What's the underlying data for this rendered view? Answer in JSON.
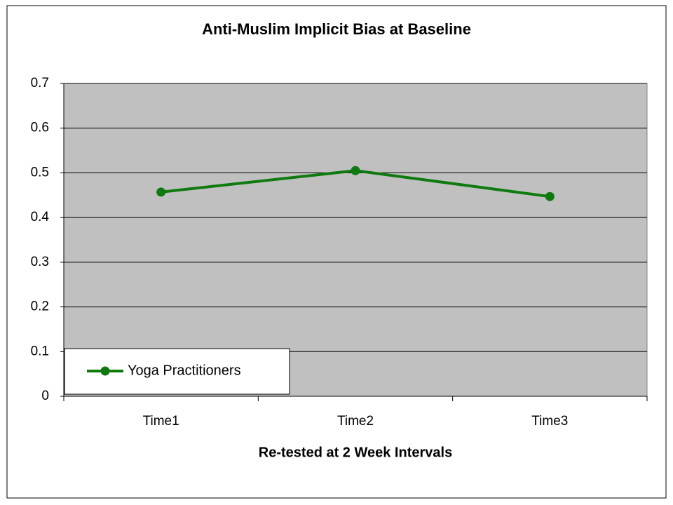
{
  "chart_data": {
    "type": "line",
    "title": "Anti-Muslim Implicit Bias at Baseline",
    "x_label": "Re-tested at 2 Week Intervals",
    "categories": [
      "Time1",
      "Time2",
      "Time3"
    ],
    "series": [
      {
        "name": "Yoga Practitioners",
        "color": "#0f7a0f",
        "values": [
          0.457,
          0.505,
          0.447
        ]
      }
    ],
    "ylim": [
      0,
      0.7
    ],
    "yticks": [
      0,
      0.1,
      0.2,
      0.3,
      0.4,
      0.5,
      0.6,
      0.7
    ],
    "grid": true,
    "legend": "lower left",
    "background": "#c0c0c0"
  }
}
